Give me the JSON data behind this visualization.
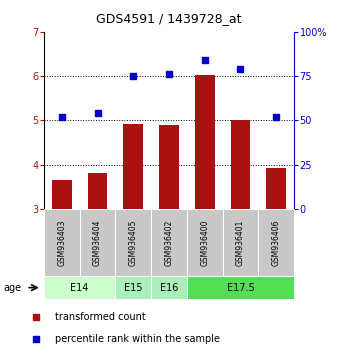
{
  "title": "GDS4591 / 1439728_at",
  "samples": [
    "GSM936403",
    "GSM936404",
    "GSM936405",
    "GSM936402",
    "GSM936400",
    "GSM936401",
    "GSM936406"
  ],
  "red_values": [
    3.65,
    3.82,
    4.92,
    4.9,
    6.02,
    5.0,
    3.92
  ],
  "blue_values": [
    52,
    54,
    75,
    76,
    84,
    79,
    52
  ],
  "ylim_left": [
    3,
    7
  ],
  "ylim_right": [
    0,
    100
  ],
  "yticks_left": [
    3,
    4,
    5,
    6,
    7
  ],
  "yticks_right": [
    0,
    25,
    50,
    75,
    100
  ],
  "ytick_labels_right": [
    "0",
    "25",
    "50",
    "75",
    "100%"
  ],
  "groups": [
    {
      "label": "E14",
      "span": [
        0,
        1
      ],
      "color": "#ccffcc"
    },
    {
      "label": "E15",
      "span": [
        2,
        2
      ],
      "color": "#aaeebb"
    },
    {
      "label": "E16",
      "span": [
        3,
        3
      ],
      "color": "#aaeebb"
    },
    {
      "label": "E17.5",
      "span": [
        4,
        6
      ],
      "color": "#55dd55"
    }
  ],
  "age_label": "age",
  "legend_red": "transformed count",
  "legend_blue": "percentile rank within the sample",
  "bar_color": "#aa1111",
  "dot_color": "#0000cc",
  "bar_bottom": 3.0,
  "bg_color": "#ffffff",
  "sample_box_color": "#c8c8c8"
}
